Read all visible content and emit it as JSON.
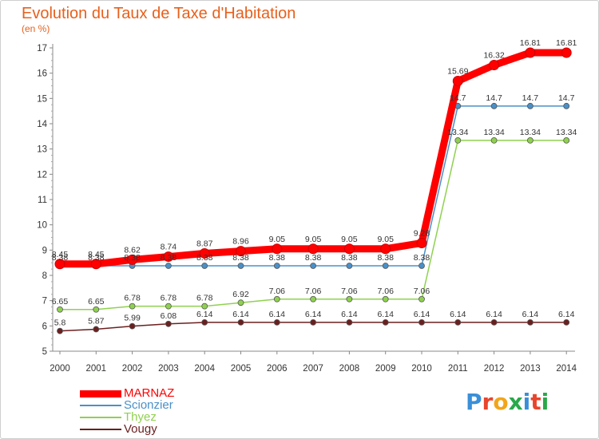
{
  "title": "Evolution du Taux de Taxe d'Habitation",
  "unit": "(en %)",
  "logo": {
    "text": "Proxiti",
    "colors": [
      "#3a8fd8",
      "#e8452c",
      "#f2a51a",
      "#2aa84a",
      "#3a8fd8",
      "#e8452c",
      "#2aa84a"
    ]
  },
  "chart_data": {
    "type": "line",
    "title": "Evolution du Taux de Taxe d'Habitation",
    "ylabel": "(en %)",
    "xlabel": "",
    "ylim": [
      5,
      17
    ],
    "yticks": [
      "5",
      "6",
      "7",
      "8",
      "9",
      "10",
      "11",
      "12",
      "13",
      "14",
      "15",
      "16",
      "17"
    ],
    "x": [
      "2000",
      "2001",
      "2002",
      "2003",
      "2004",
      "2005",
      "2006",
      "2007",
      "2008",
      "2009",
      "2010",
      "2011",
      "2012",
      "2013",
      "2014"
    ],
    "grid": false,
    "legend_position": "bottom-left",
    "series": [
      {
        "name": "MARNAZ",
        "color": "#ff0000",
        "values": [
          8.45,
          8.45,
          8.62,
          8.74,
          8.87,
          8.96,
          9.05,
          9.05,
          9.05,
          9.05,
          9.28,
          15.69,
          16.32,
          16.81,
          16.81
        ],
        "labels": [
          "8.45",
          "8.45",
          "8.62",
          "8.74",
          "8.87",
          "8.96",
          "9.05",
          "9.05",
          "9.05",
          "9.05",
          "9.28",
          "15.69",
          "16.32",
          "16.81",
          "16.81"
        ]
      },
      {
        "name": "Scionzier",
        "color": "#4a90c8",
        "values": [
          8.38,
          8.38,
          8.38,
          8.38,
          8.38,
          8.38,
          8.38,
          8.38,
          8.38,
          8.38,
          8.38,
          14.7,
          14.7,
          14.7,
          14.7
        ],
        "labels": [
          "8.38",
          "8.38",
          "8.38",
          "8.38",
          "8.38",
          "8.38",
          "8.38",
          "8.38",
          "8.38",
          "8.38",
          "8.38",
          "14.7",
          "14.7",
          "14.7",
          "14.7"
        ]
      },
      {
        "name": "Thyez",
        "color": "#8fd14f",
        "values": [
          6.65,
          6.65,
          6.78,
          6.78,
          6.78,
          6.92,
          7.06,
          7.06,
          7.06,
          7.06,
          7.06,
          13.34,
          13.34,
          13.34,
          13.34
        ],
        "labels": [
          "6.65",
          "6.65",
          "6.78",
          "6.78",
          "6.78",
          "6.92",
          "7.06",
          "7.06",
          "7.06",
          "7.06",
          "7.06",
          "13.34",
          "13.34",
          "13.34",
          "13.34"
        ]
      },
      {
        "name": "Vougy",
        "color": "#6b1f1f",
        "values": [
          5.8,
          5.87,
          5.99,
          6.08,
          6.14,
          6.14,
          6.14,
          6.14,
          6.14,
          6.14,
          6.14,
          6.14,
          6.14,
          6.14,
          6.14
        ],
        "labels": [
          "5.8",
          "5.87",
          "5.99",
          "6.08",
          "6.14",
          "6.14",
          "6.14",
          "6.14",
          "6.14",
          "6.14",
          "6.14",
          "6.14",
          "6.14",
          "6.14",
          "6.14"
        ]
      }
    ]
  }
}
